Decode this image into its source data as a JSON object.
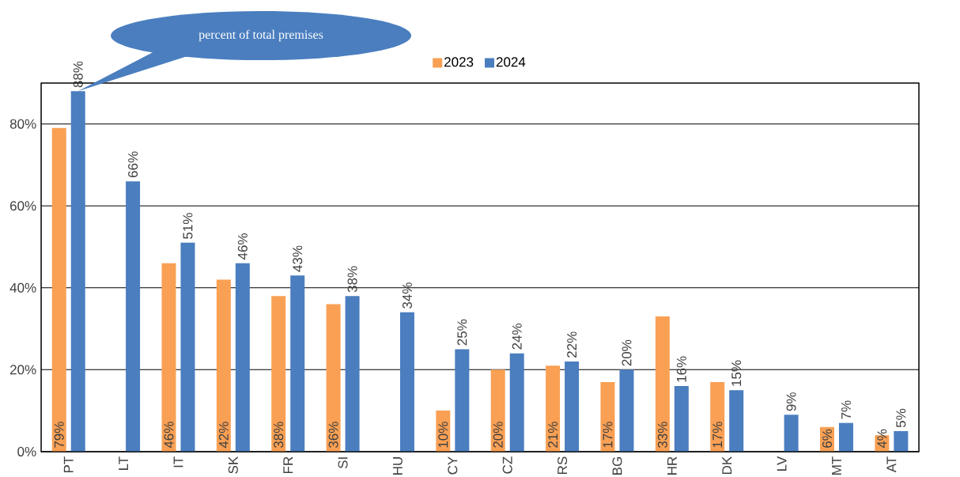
{
  "chart_data": {
    "type": "bar",
    "categories": [
      "PT",
      "LT",
      "IT",
      "SK",
      "FR",
      "SI",
      "HU",
      "CY",
      "CZ",
      "RS",
      "BG",
      "HR",
      "DK",
      "LV",
      "MT",
      "AT"
    ],
    "series": [
      {
        "name": "2023",
        "color": "#f9a054",
        "values": [
          79,
          null,
          46,
          42,
          38,
          36,
          null,
          10,
          20,
          21,
          17,
          33,
          17,
          null,
          6,
          4
        ],
        "value_labels": [
          "79%",
          null,
          "46%",
          "42%",
          "38%",
          "36%",
          null,
          "10%",
          "20%",
          "21%",
          "17%",
          "33%",
          "17%",
          null,
          "6%",
          "4%"
        ]
      },
      {
        "name": "2024",
        "color": "#4a7ebf",
        "values": [
          88,
          66,
          51,
          46,
          43,
          38,
          34,
          25,
          24,
          22,
          20,
          16,
          15,
          9,
          7,
          5
        ],
        "value_labels": [
          "88%",
          "66%",
          "51%",
          "46%",
          "43%",
          "38%",
          "34%",
          "25%",
          "24%",
          "22%",
          "20%",
          "16%",
          "15%",
          "9%",
          "7%",
          "5%"
        ]
      }
    ],
    "ylim": [
      0,
      90
    ],
    "yticks": [
      {
        "value": 0,
        "label": "0%"
      },
      {
        "value": 20,
        "label": "20%"
      },
      {
        "value": 40,
        "label": "40%"
      },
      {
        "value": 60,
        "label": "60%"
      },
      {
        "value": 80,
        "label": "80%"
      }
    ],
    "grid": "y",
    "legend": "top",
    "annotations": [
      "percent of total premises"
    ]
  }
}
